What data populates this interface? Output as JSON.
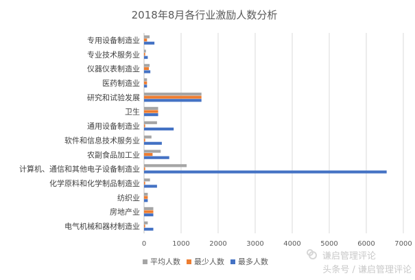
{
  "chart_data": {
    "type": "bar",
    "orientation": "horizontal",
    "title": "2018年8月各行业激励人数分析",
    "categories": [
      "专用设备制造业",
      "专业技术服务业",
      "仪器仪表制造业",
      "医药制造业",
      "研究和试验发展",
      "卫生",
      "通用设备制造业",
      "软件和信息技术服务业",
      "农副食品加工业",
      "计算机、通信和其他电子设备制造业",
      "化学原料和化学制品制造业",
      "纺织业",
      "房地产业",
      "电气机械和器材制造业"
    ],
    "series": [
      {
        "name": "平均人数",
        "color": "#a5a5a5",
        "values": [
          150,
          50,
          150,
          80,
          1550,
          380,
          350,
          200,
          450,
          1150,
          160,
          100,
          250,
          100
        ]
      },
      {
        "name": "最少人数",
        "color": "#ed7d31",
        "values": [
          80,
          30,
          130,
          80,
          1550,
          380,
          30,
          30,
          230,
          30,
          30,
          100,
          250,
          30
        ]
      },
      {
        "name": "最多人数",
        "color": "#4472c4",
        "values": [
          280,
          100,
          170,
          80,
          1550,
          380,
          800,
          480,
          680,
          6550,
          350,
          100,
          250,
          250
        ]
      }
    ],
    "xlim": [
      0,
      7000
    ],
    "xticks": [
      "0",
      "1000",
      "2000",
      "3000",
      "4000",
      "5000",
      "6000",
      "7000"
    ],
    "grid": true,
    "legend_position": "bottom"
  },
  "watermark": {
    "text": "头条号 / 谦启管理评论",
    "brand": "谦启管理评论"
  }
}
